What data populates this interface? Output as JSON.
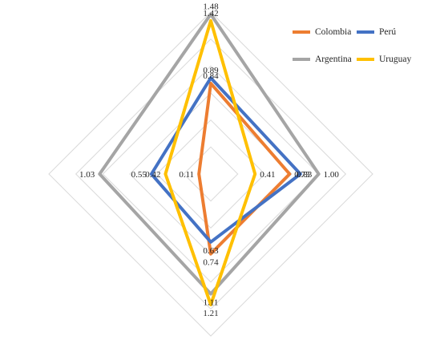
{
  "chart_data": {
    "type": "radar",
    "axes": [
      "top",
      "right",
      "bottom",
      "left"
    ],
    "scale": {
      "min": 0,
      "max": 1.5,
      "grid_levels": 6
    },
    "series": [
      {
        "name": "Colombia",
        "color": "#ED7D31",
        "values": [
          0.84,
          0.73,
          0.74,
          0.11
        ],
        "labels": [
          "0.84",
          "0.73",
          "0.74",
          "0.11"
        ]
      },
      {
        "name": "Perú",
        "color": "#4472C4",
        "values": [
          0.89,
          0.83,
          0.63,
          0.55
        ],
        "labels": [
          "0.89",
          "",
          "0.63",
          "0.55"
        ]
      },
      {
        "name": "Argentina",
        "color": "#A5A5A5",
        "values": [
          1.48,
          1.0,
          1.11,
          1.03
        ],
        "labels": [
          "1.48",
          "1.00",
          "1.11",
          "1.03"
        ]
      },
      {
        "name": "Uruguay",
        "color": "#FFC000",
        "values": [
          1.42,
          0.41,
          1.21,
          0.42
        ],
        "labels": [
          "1.42",
          "0.41",
          "1.21",
          "0.42"
        ]
      }
    ],
    "extra_labels": [
      {
        "axis": "right",
        "text": "0.83"
      }
    ],
    "legend_position": "top-right"
  }
}
